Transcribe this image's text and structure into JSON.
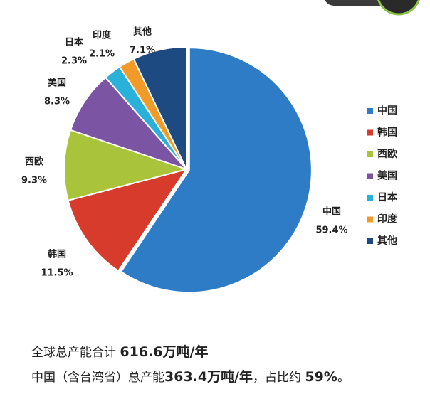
{
  "chart_data": {
    "type": "pie",
    "categories": [
      "中国",
      "韩国",
      "西欧",
      "美国",
      "日本",
      "印度",
      "其他"
    ],
    "values": [
      59.4,
      11.5,
      9.3,
      8.3,
      2.3,
      2.1,
      7.1
    ],
    "value_labels": [
      "59.4%",
      "11.5%",
      "9.3%",
      "8.3%",
      "2.3%",
      "2.1%",
      "7.1%"
    ],
    "colors": [
      "#2f7cc6",
      "#d63b2b",
      "#a9c33b",
      "#7b55a3",
      "#29b1d9",
      "#f19a28",
      "#1d4a80"
    ],
    "legend": "right"
  },
  "footer": {
    "line1": [
      "全球总产能合计",
      "616.6万吨/年"
    ],
    "line2": [
      "中国（含台湾省）总产能",
      "363.4万吨/年",
      "，占比约 ",
      "59%",
      "。"
    ]
  }
}
